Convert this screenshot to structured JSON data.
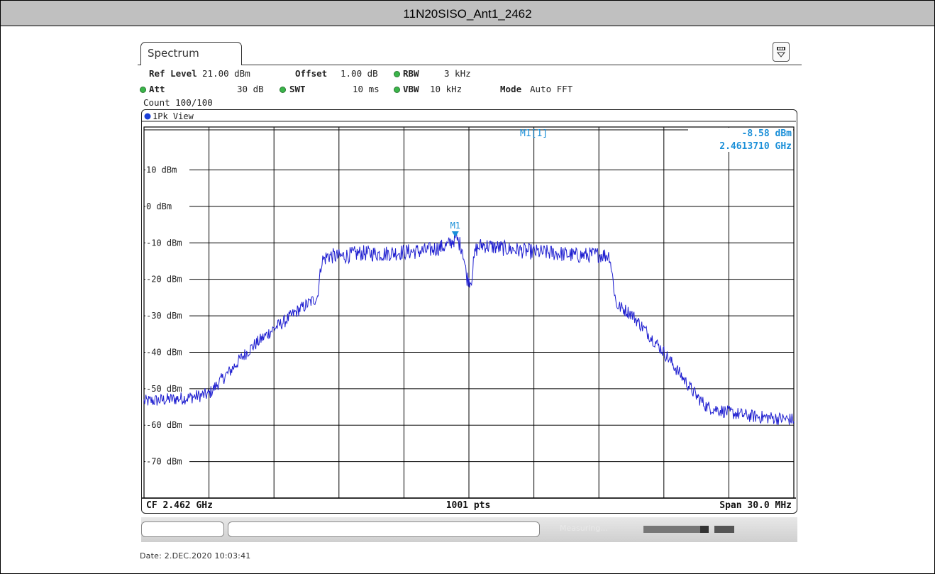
{
  "page": {
    "title": "11N20SISO_Ant1_2462",
    "date": "Date: 2.DEC.2020  10:03:41"
  },
  "instrument": {
    "tab_label": "Spectrum",
    "settings": {
      "ref_level_label": "Ref Level",
      "ref_level_value": "21.00 dBm",
      "offset_label": "Offset",
      "offset_value": "1.00 dB",
      "rbw_label": "RBW",
      "rbw_value": "3 kHz",
      "att_label": "Att",
      "att_value": "30 dB",
      "swt_label": "SWT",
      "swt_value": "10 ms",
      "vbw_label": "VBW",
      "vbw_value": "10 kHz",
      "mode_label": "Mode",
      "mode_value": "Auto FFT",
      "count": "Count 100/100"
    },
    "view_label": "1Pk View",
    "marker_readout": {
      "name": "M1[1]",
      "level": "-8.58 dBm",
      "frequency": "2.4613710 GHz"
    },
    "footer": {
      "center": "CF 2.462 GHz",
      "points": "1001 pts",
      "span": "Span 30.0 MHz"
    },
    "status_text": "Measuring..."
  },
  "colors": {
    "trace": "#1f1fd0",
    "marker": "#1a8fd8",
    "grid": "#000000",
    "status_dot": "#3ab54a"
  },
  "chart_data": {
    "type": "line",
    "title": "11N20SISO_Ant1_2462",
    "xlabel": "",
    "ylabel": "",
    "x_unit": "GHz",
    "y_unit": "dBm",
    "xlim": [
      2.447,
      2.477
    ],
    "ylim": [
      -80,
      21
    ],
    "y_ticks": [
      10,
      0,
      -10,
      -20,
      -30,
      -40,
      -50,
      -60,
      -70
    ],
    "y_tick_labels": [
      "10 dBm",
      "0 dBm",
      "-10 dBm",
      "-20 dBm",
      "-30 dBm",
      "-40 dBm",
      "-50 dBm",
      "-60 dBm",
      "-70 dBm"
    ],
    "ref_line": 21,
    "display_line": 21,
    "grid": true,
    "marker": {
      "label": "M1",
      "x": 2.461371,
      "y": -8.58
    },
    "series": [
      {
        "name": "1Pk",
        "x": [
          2.447,
          2.448,
          2.449,
          2.45,
          2.4505,
          2.451,
          2.4515,
          2.452,
          2.4525,
          2.453,
          2.4535,
          2.454,
          2.4545,
          2.455,
          2.4552,
          2.4555,
          2.456,
          2.457,
          2.458,
          2.459,
          2.46,
          2.4605,
          2.461,
          2.4614,
          2.4617,
          2.4619,
          2.4621,
          2.4623,
          2.4626,
          2.463,
          2.464,
          2.465,
          2.466,
          2.467,
          2.468,
          2.4685,
          2.4688,
          2.4695,
          2.47,
          2.4705,
          2.471,
          2.4715,
          2.472,
          2.4725,
          2.473,
          2.474,
          2.475,
          2.476,
          2.477
        ],
        "y": [
          -53.5,
          -53.0,
          -52.5,
          -51.5,
          -48.0,
          -45.0,
          -41.5,
          -38.5,
          -36.0,
          -33.5,
          -31.5,
          -29.0,
          -27.0,
          -25.0,
          -15.0,
          -13.5,
          -13.8,
          -12.8,
          -13.0,
          -12.5,
          -12.2,
          -11.5,
          -10.8,
          -8.6,
          -11.5,
          -19.5,
          -20.5,
          -12.0,
          -10.5,
          -11.0,
          -11.8,
          -12.5,
          -12.8,
          -13.5,
          -13.2,
          -13.5,
          -27.0,
          -29.5,
          -33.0,
          -36.5,
          -40.0,
          -44.0,
          -48.0,
          -52.0,
          -55.0,
          -56.5,
          -57.5,
          -58.0,
          -58.5
        ]
      }
    ]
  }
}
